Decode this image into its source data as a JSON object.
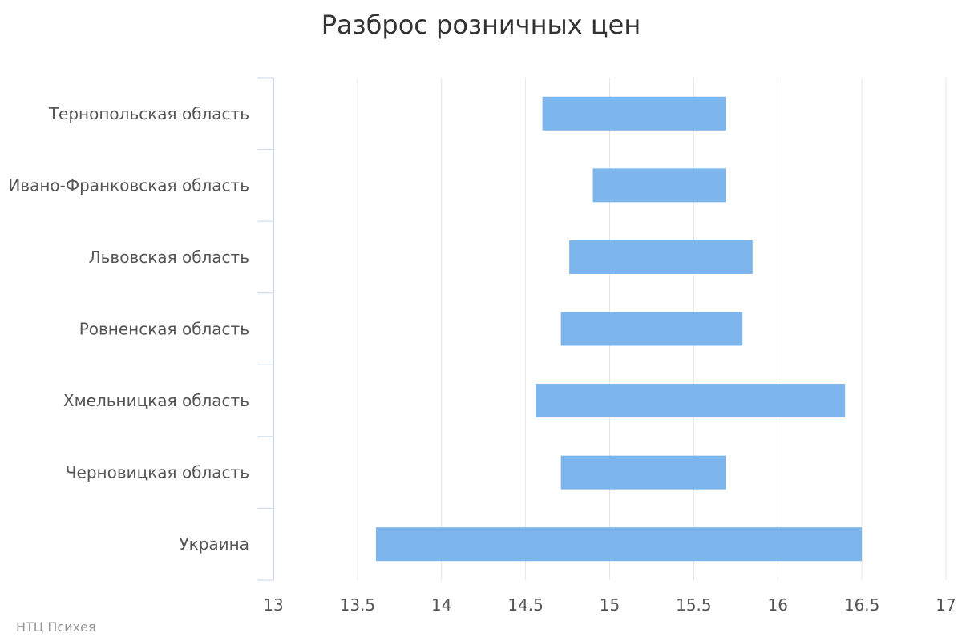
{
  "chart_data": {
    "type": "bar",
    "orientation": "horizontal",
    "subtype": "columnrange",
    "title": "Разброс розничных цен",
    "xlabel": "",
    "ylabel": "",
    "categories": [
      "Тернопольская область",
      "Ивано-Франковская область",
      "Львовская область",
      "Ровненская область",
      "Хмельницкая область",
      "Черновицкая область",
      "Украина"
    ],
    "ranges": [
      [
        14.6,
        15.69
      ],
      [
        14.9,
        15.69
      ],
      [
        14.76,
        15.85
      ],
      [
        14.71,
        15.79
      ],
      [
        14.56,
        16.4
      ],
      [
        14.71,
        15.69
      ],
      [
        13.61,
        16.5
      ]
    ],
    "xlim": [
      13,
      17
    ],
    "ticks": [
      "13",
      "13.5",
      "14",
      "14.5",
      "15",
      "15.5",
      "16",
      "16.5",
      "17"
    ],
    "grid": true,
    "legend": "none",
    "colors": {
      "bar": "#7cb5ec",
      "grid": "#e6e6e6",
      "axis": "#ccd6eb",
      "text": "#555555",
      "title": "#333333",
      "credits": "#999999"
    }
  },
  "credits": "НТЦ Психея"
}
